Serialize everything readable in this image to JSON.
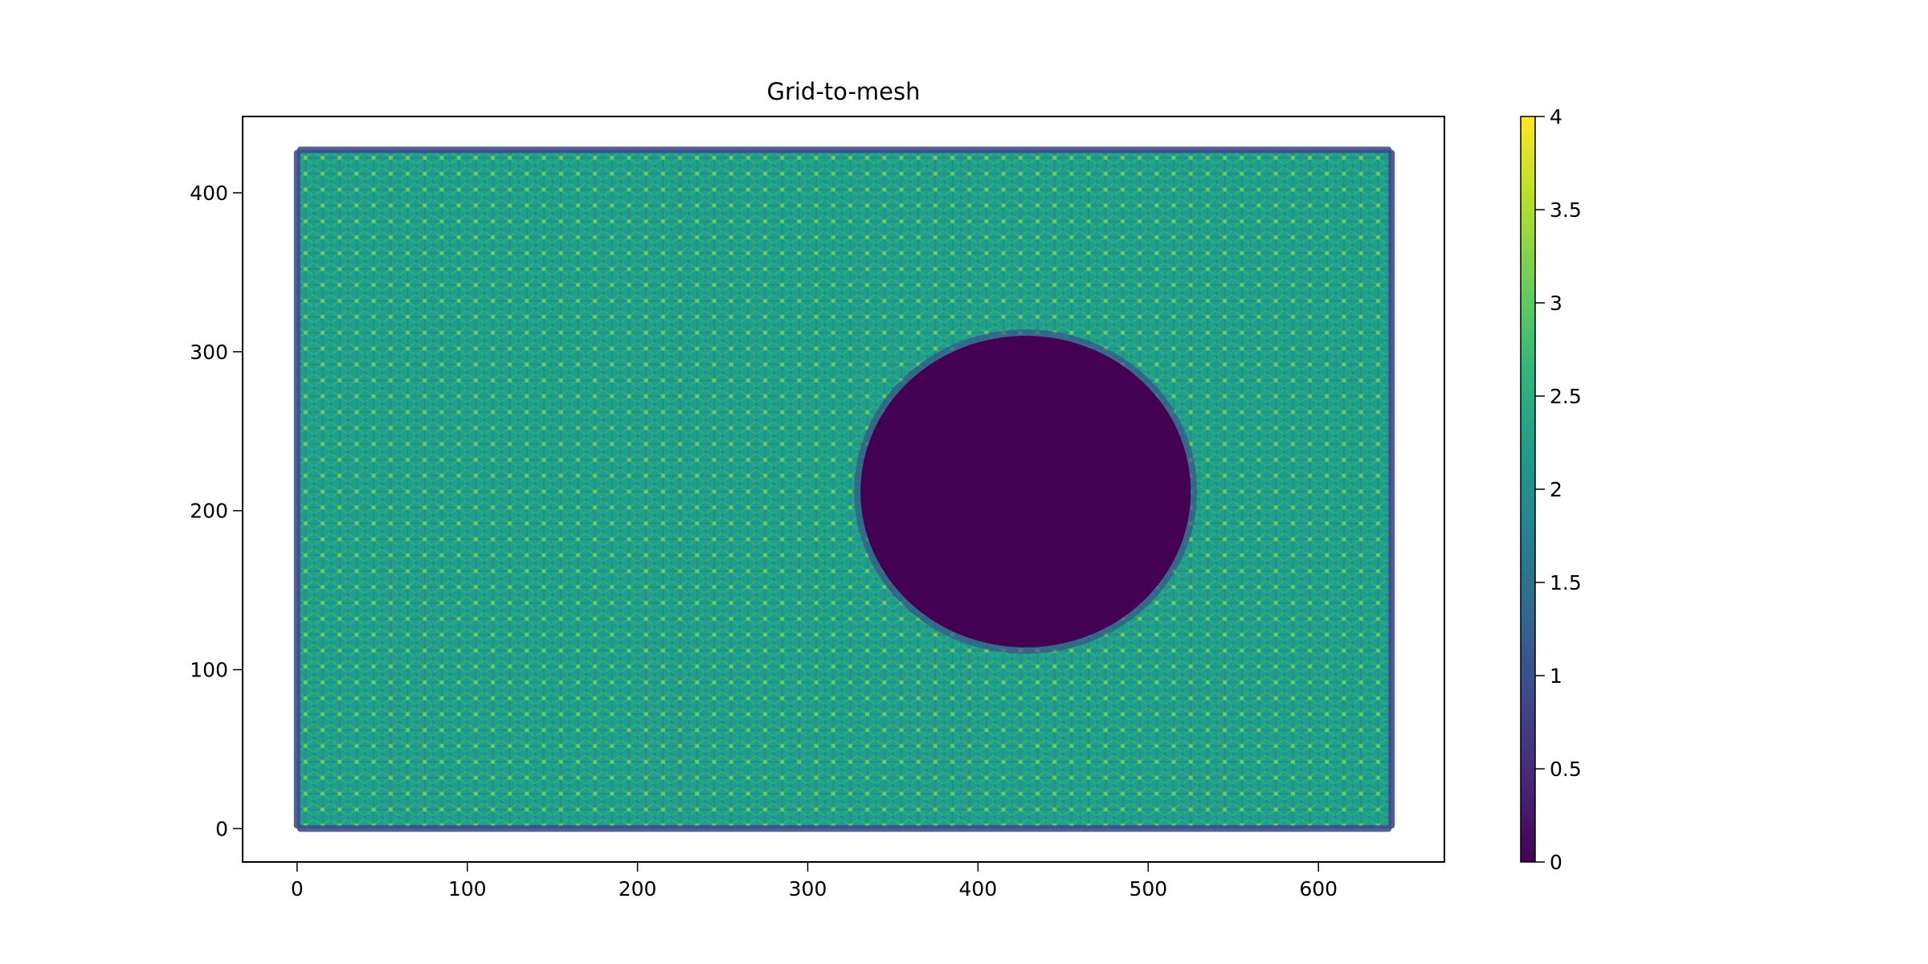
{
  "chart_data": {
    "type": "heatmap",
    "title": "Grid-to-mesh",
    "xlabel": "",
    "ylabel": "",
    "xlim": [
      -32,
      674
    ],
    "ylim": [
      -21,
      448
    ],
    "x_ticks": [
      0,
      100,
      200,
      300,
      400,
      500,
      600
    ],
    "y_ticks": [
      0,
      100,
      200,
      300,
      400
    ],
    "grid": false,
    "grid_points": {
      "x_range": [
        0,
        643
      ],
      "y_range": [
        0,
        427
      ],
      "spacing": 10
    },
    "hole": {
      "shape": "ellipse",
      "center": [
        428,
        212
      ],
      "radius_x": 97,
      "radius_y": 98,
      "value": 0.0
    },
    "values": {
      "background": 2.1,
      "edge": 1.0,
      "peak": 4.0,
      "hole": 0.0
    },
    "colorbar": {
      "colormap": "viridis",
      "range": [
        0.0,
        4.0
      ],
      "ticks": [
        0.0,
        0.5,
        1.0,
        1.5,
        2.0,
        2.5,
        3.0,
        3.5,
        4.0
      ],
      "colors": [
        "#440154",
        "#482878",
        "#3e4989",
        "#31688e",
        "#26828e",
        "#1f9e89",
        "#35b779",
        "#6ece58",
        "#b5de2b",
        "#fde725"
      ]
    }
  }
}
